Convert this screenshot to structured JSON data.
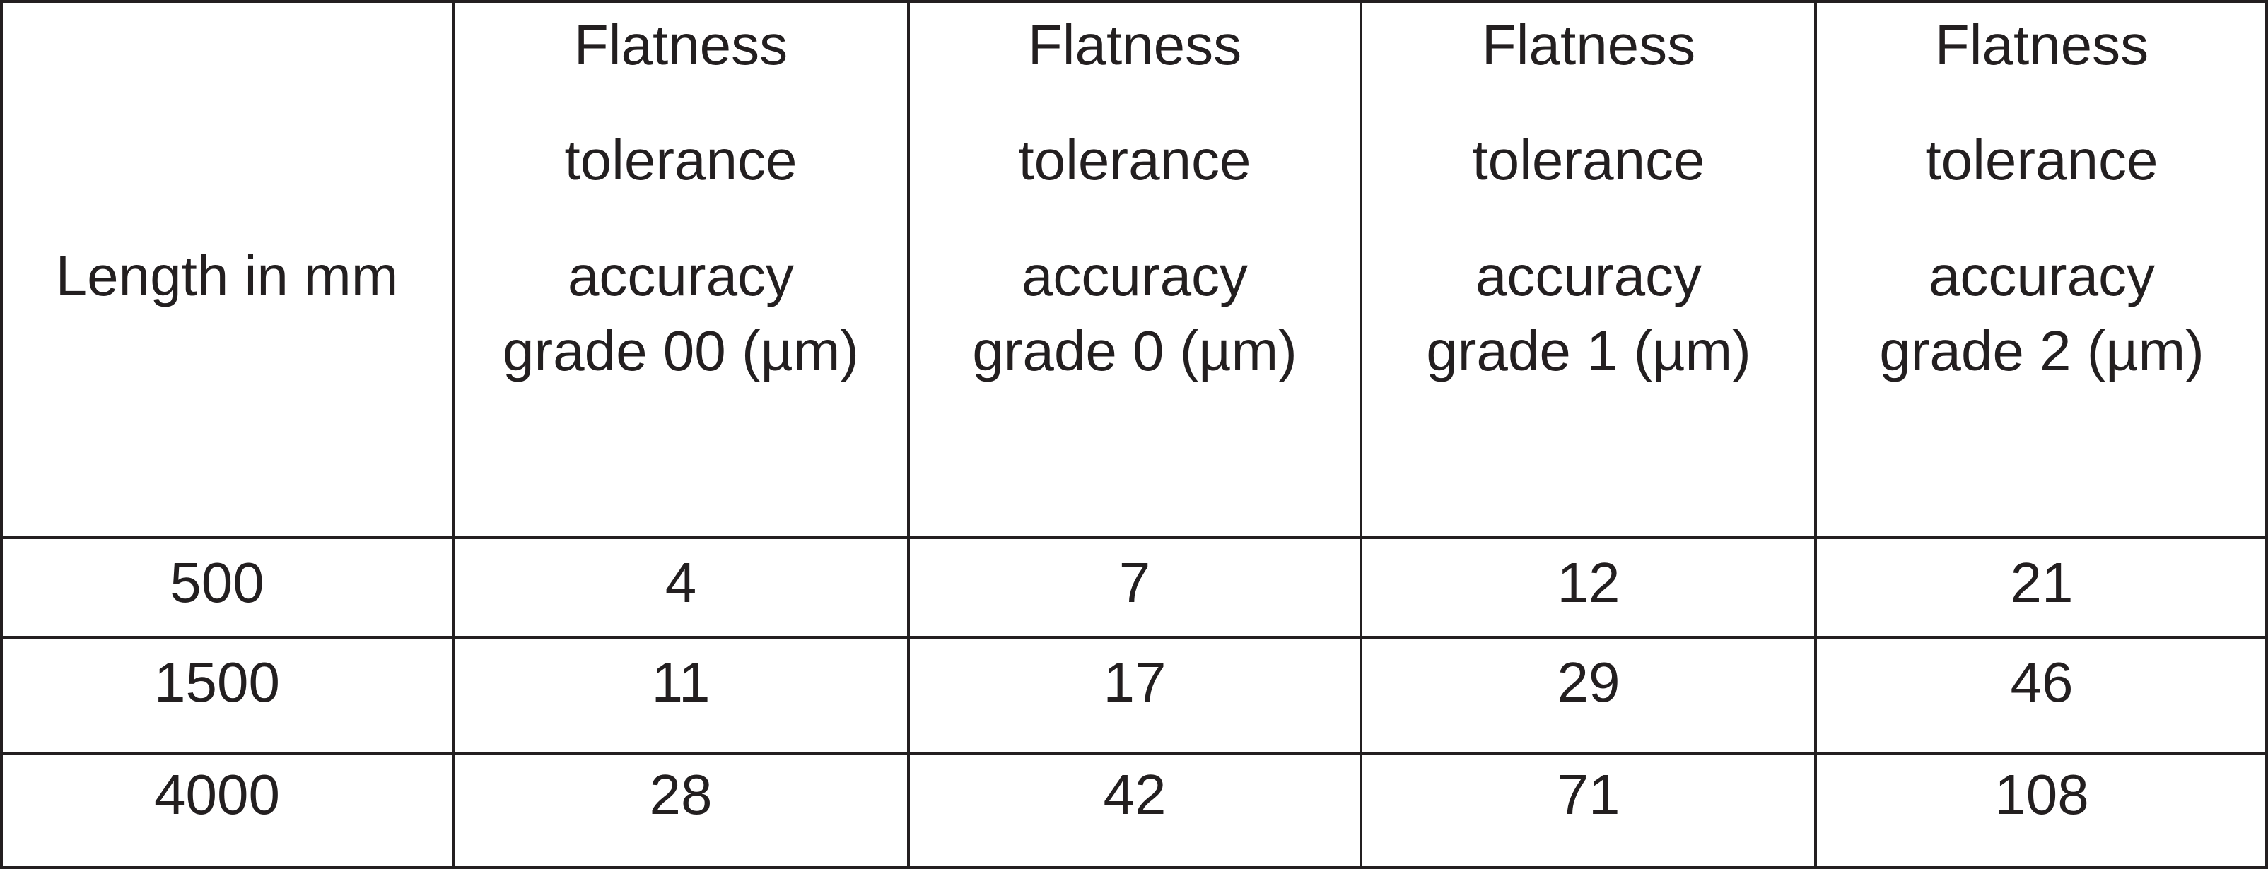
{
  "table": {
    "header": [
      [
        "Length in mm"
      ],
      [
        "Flatness",
        "tolerance",
        "accuracy",
        "grade 00 (µm)"
      ],
      [
        "Flatness",
        "tolerance",
        "accuracy",
        "grade 0 (µm)"
      ],
      [
        "Flatness",
        "tolerance",
        "accuracy",
        "grade 1 (µm)"
      ],
      [
        "Flatness",
        "tolerance",
        "accuracy",
        "grade 2 (µm)"
      ]
    ],
    "rows": [
      [
        500,
        4,
        7,
        12,
        21
      ],
      [
        1500,
        11,
        17,
        29,
        46
      ],
      [
        4000,
        28,
        42,
        71,
        108
      ]
    ]
  }
}
